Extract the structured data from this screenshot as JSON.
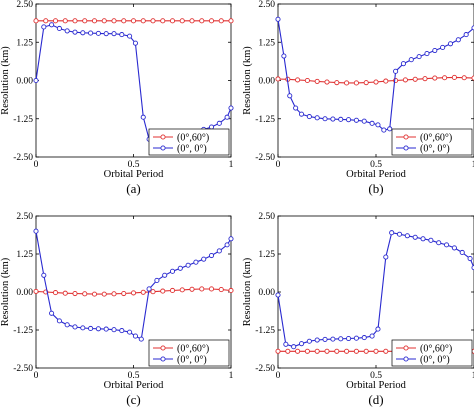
{
  "chart_data": [
    {
      "type": "line",
      "panel_label": "(a)",
      "xlabel": "Orbital Period",
      "ylabel": "Resolution (km)",
      "xlim": [
        0,
        1
      ],
      "ylim": [
        -2.5,
        2.5
      ],
      "xticks": [
        "0",
        "0.5",
        "1"
      ],
      "yticks": [
        "-2.50",
        "-1.25",
        "0.00",
        "1.25",
        "2.50"
      ],
      "legend_position": "bottom-right",
      "series": [
        {
          "name": "(0°,60°)",
          "color": "#e03030",
          "marker": "circle",
          "x": [
            0,
            0.05,
            0.1,
            0.15,
            0.2,
            0.25,
            0.3,
            0.35,
            0.4,
            0.45,
            0.5,
            0.55,
            0.6,
            0.65,
            0.7,
            0.75,
            0.8,
            0.85,
            0.9,
            0.95,
            1
          ],
          "y": [
            1.95,
            1.95,
            1.95,
            1.95,
            1.95,
            1.95,
            1.95,
            1.95,
            1.95,
            1.95,
            1.95,
            1.95,
            1.95,
            1.95,
            1.95,
            1.95,
            1.95,
            1.95,
            1.95,
            1.95,
            1.95
          ]
        },
        {
          "name": "(0°,  0°)",
          "color": "#2a2ad0",
          "marker": "circle",
          "x": [
            0,
            0.04,
            0.08,
            0.12,
            0.16,
            0.2,
            0.24,
            0.28,
            0.32,
            0.36,
            0.4,
            0.44,
            0.48,
            0.51,
            0.55,
            0.58,
            0.62,
            0.66,
            0.7,
            0.74,
            0.78,
            0.82,
            0.86,
            0.9,
            0.94,
            0.98,
            1
          ],
          "y": [
            0.0,
            1.75,
            1.82,
            1.7,
            1.62,
            1.58,
            1.56,
            1.55,
            1.54,
            1.53,
            1.53,
            1.5,
            1.45,
            1.22,
            -1.2,
            -1.92,
            -1.87,
            -1.82,
            -1.8,
            -1.78,
            -1.72,
            -1.67,
            -1.6,
            -1.52,
            -1.4,
            -1.2,
            -0.9
          ]
        }
      ]
    },
    {
      "type": "line",
      "panel_label": "(b)",
      "xlabel": "Orbital Period",
      "ylabel": "Resolution (km)",
      "xlim": [
        0,
        1
      ],
      "ylim": [
        -2.5,
        2.5
      ],
      "xticks": [
        "0",
        "0.5",
        "1"
      ],
      "yticks": [
        "-2.50",
        "-1.25",
        "0.00",
        "1.25",
        "2.50"
      ],
      "legend_position": "bottom-right",
      "series": [
        {
          "name": "(0°,60°)",
          "color": "#e03030",
          "marker": "circle",
          "x": [
            0,
            0.05,
            0.1,
            0.15,
            0.2,
            0.25,
            0.3,
            0.35,
            0.4,
            0.45,
            0.5,
            0.55,
            0.6,
            0.65,
            0.7,
            0.75,
            0.8,
            0.85,
            0.9,
            0.95,
            1
          ],
          "y": [
            0.05,
            0.04,
            0.02,
            0.0,
            -0.03,
            -0.05,
            -0.07,
            -0.08,
            -0.08,
            -0.07,
            -0.05,
            -0.02,
            0.0,
            0.02,
            0.04,
            0.06,
            0.08,
            0.09,
            0.1,
            0.09,
            0.08
          ]
        },
        {
          "name": "(0°,  0°)",
          "color": "#2a2ad0",
          "marker": "circle",
          "x": [
            0,
            0.03,
            0.06,
            0.09,
            0.12,
            0.16,
            0.2,
            0.24,
            0.28,
            0.32,
            0.36,
            0.4,
            0.44,
            0.48,
            0.51,
            0.54,
            0.57,
            0.6,
            0.64,
            0.68,
            0.72,
            0.76,
            0.8,
            0.84,
            0.88,
            0.92,
            0.96,
            1
          ],
          "y": [
            2.0,
            0.8,
            -0.5,
            -0.9,
            -1.1,
            -1.18,
            -1.22,
            -1.25,
            -1.26,
            -1.27,
            -1.28,
            -1.3,
            -1.33,
            -1.4,
            -1.45,
            -1.62,
            -1.58,
            0.3,
            0.55,
            0.68,
            0.78,
            0.88,
            0.98,
            1.08,
            1.2,
            1.33,
            1.5,
            1.72
          ]
        }
      ]
    },
    {
      "type": "line",
      "panel_label": "(c)",
      "xlabel": "Orbital Period",
      "ylabel": "Resolution (km)",
      "xlim": [
        0,
        1
      ],
      "ylim": [
        -2.5,
        2.5
      ],
      "xticks": [
        "0",
        "0.5",
        "1"
      ],
      "yticks": [
        "-2.50",
        "-1.25",
        "0.00",
        "1.25",
        "2.50"
      ],
      "legend_position": "bottom-right",
      "series": [
        {
          "name": "(0°,60°)",
          "color": "#e03030",
          "marker": "circle",
          "x": [
            0,
            0.05,
            0.1,
            0.15,
            0.2,
            0.25,
            0.3,
            0.35,
            0.4,
            0.45,
            0.5,
            0.55,
            0.6,
            0.65,
            0.7,
            0.75,
            0.8,
            0.85,
            0.9,
            0.95,
            1
          ],
          "y": [
            0.02,
            0.0,
            -0.02,
            -0.04,
            -0.05,
            -0.06,
            -0.07,
            -0.07,
            -0.06,
            -0.05,
            -0.03,
            -0.01,
            0.01,
            0.03,
            0.05,
            0.07,
            0.09,
            0.1,
            0.1,
            0.08,
            0.05
          ]
        },
        {
          "name": "(0°,  0°)",
          "color": "#2a2ad0",
          "marker": "circle",
          "x": [
            0,
            0.04,
            0.08,
            0.12,
            0.16,
            0.2,
            0.24,
            0.28,
            0.32,
            0.36,
            0.4,
            0.44,
            0.48,
            0.51,
            0.54,
            0.58,
            0.62,
            0.66,
            0.7,
            0.74,
            0.78,
            0.82,
            0.86,
            0.9,
            0.94,
            0.98,
            1
          ],
          "y": [
            2.0,
            0.55,
            -0.7,
            -0.95,
            -1.08,
            -1.15,
            -1.18,
            -1.2,
            -1.21,
            -1.22,
            -1.24,
            -1.27,
            -1.32,
            -1.45,
            -1.55,
            0.1,
            0.38,
            0.55,
            0.68,
            0.78,
            0.88,
            0.98,
            1.08,
            1.2,
            1.35,
            1.55,
            1.75
          ]
        }
      ]
    },
    {
      "type": "line",
      "panel_label": "(d)",
      "xlabel": "Orbital Period",
      "ylabel": "Resolution (km)",
      "xlim": [
        0,
        1
      ],
      "ylim": [
        -2.5,
        2.5
      ],
      "xticks": [
        "0",
        "0.5",
        "1"
      ],
      "yticks": [
        "-2.50",
        "-1.25",
        "0.00",
        "1.25",
        "2.50"
      ],
      "legend_position": "bottom-right",
      "series": [
        {
          "name": "(0°,60°)",
          "color": "#e03030",
          "marker": "circle",
          "x": [
            0,
            0.05,
            0.1,
            0.15,
            0.2,
            0.25,
            0.3,
            0.35,
            0.4,
            0.45,
            0.5,
            0.55,
            0.6,
            0.65,
            0.7,
            0.75,
            0.8,
            0.85,
            0.9,
            0.95,
            1
          ],
          "y": [
            -1.95,
            -1.95,
            -1.95,
            -1.95,
            -1.95,
            -1.95,
            -1.95,
            -1.95,
            -1.95,
            -1.95,
            -1.95,
            -1.95,
            -1.95,
            -1.95,
            -1.95,
            -1.95,
            -1.95,
            -1.95,
            -1.95,
            -1.95,
            -1.95
          ]
        },
        {
          "name": "(0°,  0°)",
          "color": "#2a2ad0",
          "marker": "circle",
          "x": [
            0,
            0.04,
            0.08,
            0.12,
            0.16,
            0.2,
            0.24,
            0.28,
            0.32,
            0.36,
            0.4,
            0.44,
            0.48,
            0.51,
            0.55,
            0.58,
            0.62,
            0.66,
            0.7,
            0.74,
            0.78,
            0.82,
            0.86,
            0.9,
            0.94,
            0.98,
            1
          ],
          "y": [
            -0.1,
            -1.72,
            -1.8,
            -1.7,
            -1.62,
            -1.58,
            -1.56,
            -1.55,
            -1.54,
            -1.53,
            -1.52,
            -1.5,
            -1.45,
            -1.22,
            1.15,
            1.95,
            1.9,
            1.85,
            1.8,
            1.75,
            1.7,
            1.62,
            1.55,
            1.45,
            1.3,
            1.1,
            0.8
          ]
        }
      ]
    }
  ]
}
